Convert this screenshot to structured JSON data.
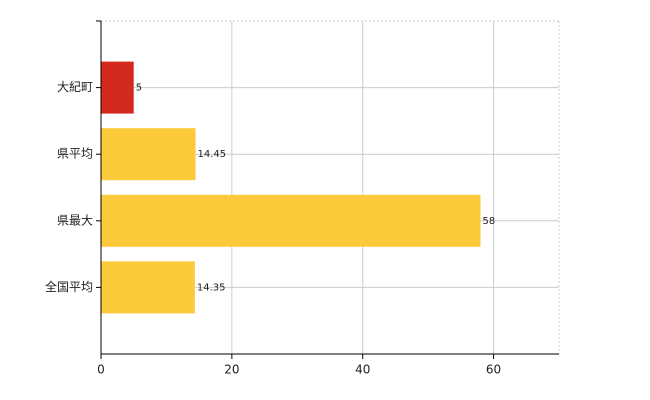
{
  "chart_data": {
    "type": "hbar",
    "categories": [
      "大紀町",
      "県平均",
      "県最大",
      "全国平均"
    ],
    "values": [
      5,
      14.45,
      58,
      14.35
    ],
    "colors": [
      "#d42a1e",
      "#fbc93a",
      "#fbc93a",
      "#fbc93a"
    ],
    "xlim": [
      0,
      70
    ],
    "xticks": [
      0,
      20,
      40,
      60
    ],
    "grid": true
  }
}
